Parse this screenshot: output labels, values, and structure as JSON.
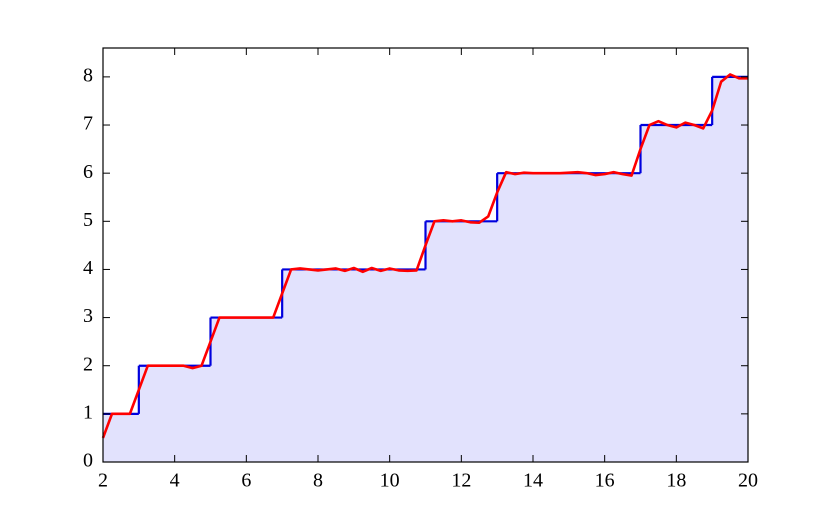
{
  "chart_data": {
    "type": "step-line",
    "xlim": [
      2,
      20
    ],
    "ylim": [
      0,
      8.6
    ],
    "xticks": [
      2,
      4,
      6,
      8,
      10,
      12,
      14,
      16,
      18,
      20
    ],
    "yticks": [
      0,
      1,
      2,
      3,
      4,
      5,
      6,
      7,
      8
    ],
    "fill_color": "#e2e2fd",
    "series": [
      {
        "style": "step",
        "color": "#0000dd",
        "x": [
          2,
          3,
          5,
          7,
          11,
          13,
          17,
          19,
          20
        ],
        "values": [
          1,
          2,
          3,
          4,
          5,
          6,
          7,
          8,
          8
        ]
      },
      {
        "style": "line",
        "color": "#ff0000",
        "x": [
          2,
          2.25,
          2.5,
          2.75,
          3,
          3.25,
          3.5,
          3.75,
          4,
          4.25,
          4.5,
          4.75,
          5,
          5.25,
          5.5,
          5.75,
          6,
          6.25,
          6.5,
          6.75,
          7,
          7.25,
          7.5,
          7.75,
          8,
          8.25,
          8.5,
          8.75,
          9,
          9.25,
          9.5,
          9.75,
          10,
          10.25,
          10.5,
          10.75,
          11,
          11.25,
          11.5,
          11.75,
          12,
          12.25,
          12.5,
          12.75,
          13,
          13.25,
          13.5,
          13.75,
          14,
          14.25,
          14.5,
          14.75,
          15,
          15.25,
          15.5,
          15.75,
          16,
          16.25,
          16.5,
          16.75,
          17,
          17.25,
          17.5,
          17.75,
          18,
          18.25,
          18.5,
          18.75,
          19,
          19.25,
          19.5,
          19.75,
          20
        ],
        "values": [
          0.5,
          1.0,
          1.0,
          1.0,
          1.5,
          2.0,
          2.0,
          2.0,
          2.0,
          2.0,
          1.95,
          2.0,
          2.5,
          3.0,
          3.0,
          3.0,
          3.0,
          3.0,
          3.0,
          3.0,
          3.5,
          4.0,
          4.02,
          4.0,
          3.98,
          4.0,
          4.02,
          3.97,
          4.03,
          3.95,
          4.03,
          3.97,
          4.02,
          3.98,
          3.97,
          3.98,
          4.5,
          5.0,
          5.02,
          5.0,
          5.02,
          4.98,
          4.97,
          5.1,
          5.6,
          6.02,
          5.98,
          6.01,
          6.0,
          6.0,
          6.0,
          6.0,
          6.01,
          6.02,
          6.0,
          5.96,
          5.98,
          6.02,
          5.98,
          5.95,
          6.5,
          7.0,
          7.08,
          7.0,
          6.95,
          7.05,
          7.0,
          6.93,
          7.3,
          7.9,
          8.05,
          7.97,
          7.97
        ]
      }
    ]
  }
}
